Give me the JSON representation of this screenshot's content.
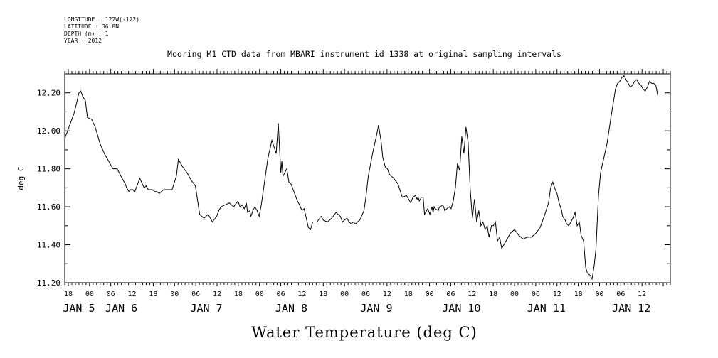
{
  "meta": {
    "longitude": "LONGITUDE : 122W(-122)",
    "latitude": "LATITUDE : 36.8N",
    "depth": "DEPTH (m) : 1",
    "year": "YEAR : 2012"
  },
  "chart_data": {
    "type": "line",
    "title": "Mooring M1 CTD data from MBARI instrument id 1338 at original sampling intervals",
    "xlabel": "Water Temperature (deg C)",
    "ylabel": "deg C",
    "ylim": [
      11.2,
      12.3
    ],
    "xlim_hours": [
      -7,
      164
    ],
    "grid": false,
    "y_ticks": [
      "11.20",
      "11.40",
      "11.60",
      "11.80",
      "12.00",
      "12.20"
    ],
    "x_ticks": [
      {
        "h": -6,
        "label": "18"
      },
      {
        "h": 0,
        "label": "00"
      },
      {
        "h": 6,
        "label": "06"
      },
      {
        "h": 12,
        "label": "12"
      },
      {
        "h": 18,
        "label": "18"
      },
      {
        "h": 24,
        "label": "00"
      },
      {
        "h": 30,
        "label": "06"
      },
      {
        "h": 36,
        "label": "12"
      },
      {
        "h": 42,
        "label": "18"
      },
      {
        "h": 48,
        "label": "00"
      },
      {
        "h": 54,
        "label": "06"
      },
      {
        "h": 60,
        "label": "12"
      },
      {
        "h": 66,
        "label": "18"
      },
      {
        "h": 72,
        "label": "00"
      },
      {
        "h": 78,
        "label": "06"
      },
      {
        "h": 84,
        "label": "12"
      },
      {
        "h": 90,
        "label": "18"
      },
      {
        "h": 96,
        "label": "00"
      },
      {
        "h": 102,
        "label": "06"
      },
      {
        "h": 108,
        "label": "12"
      },
      {
        "h": 114,
        "label": "18"
      },
      {
        "h": 120,
        "label": "00"
      },
      {
        "h": 126,
        "label": "06"
      },
      {
        "h": 132,
        "label": "12"
      },
      {
        "h": 138,
        "label": "18"
      },
      {
        "h": 144,
        "label": "00"
      },
      {
        "h": 150,
        "label": "06"
      },
      {
        "h": 156,
        "label": "12"
      }
    ],
    "day_labels": [
      {
        "h": -3,
        "label": "JAN  5"
      },
      {
        "h": 9,
        "label": "JAN  6"
      },
      {
        "h": 33,
        "label": "JAN  7"
      },
      {
        "h": 57,
        "label": "JAN  8"
      },
      {
        "h": 81,
        "label": "JAN  9"
      },
      {
        "h": 105,
        "label": "JAN 10"
      },
      {
        "h": 129,
        "label": "JAN 11"
      },
      {
        "h": 153,
        "label": "JAN 12"
      }
    ],
    "series": [
      {
        "x_hours": [
          -7.0,
          -6.0,
          -5.0,
          -4.4,
          -3.6,
          -3.0,
          -2.5,
          -1.9,
          -1.2,
          -0.6,
          0.6,
          1.6,
          3.0,
          4.2,
          5.4,
          6.6,
          7.8,
          8.9,
          10.1,
          10.5,
          11.1,
          11.6,
          12.2,
          12.8,
          14.2,
          15.4,
          16.0,
          16.6,
          17.8,
          18.4,
          19.0,
          19.7,
          20.9,
          22.1,
          23.3,
          23.8,
          24.5,
          25.1,
          25.7,
          26.3,
          27.5,
          28.7,
          29.9,
          31.1,
          32.3,
          33.5,
          34.7,
          35.9,
          36.5,
          37.1,
          38.3,
          39.5,
          40.7,
          41.9,
          42.5,
          43.1,
          43.7,
          44.3,
          44.6,
          45.3,
          45.5,
          45.8,
          46.1,
          46.7,
          47.3,
          47.9,
          48.5,
          49.1,
          50.3,
          51.5,
          52.7,
          53.3,
          54.0,
          54.3,
          54.6,
          55.7,
          56.3,
          56.9,
          57.5,
          58.1,
          58.7,
          59.3,
          60.0,
          60.6,
          61.8,
          62.4,
          63.0,
          64.2,
          65.4,
          66.0,
          67.2,
          68.4,
          69.6,
          70.8,
          71.4,
          72.0,
          72.7,
          73.3,
          73.9,
          74.5,
          75.1,
          76.3,
          77.5,
          78.1,
          78.7,
          79.9,
          81.1,
          81.6,
          82.3,
          82.8,
          83.5,
          84.1,
          84.7,
          85.9,
          87.1,
          88.3,
          89.5,
          90.1,
          90.7,
          91.3,
          92.0,
          92.5,
          92.8,
          93.1,
          93.7,
          94.2,
          94.6,
          94.9,
          95.5,
          96.1,
          96.7,
          97.0,
          97.3,
          97.6,
          98.5,
          98.8,
          99.1,
          99.7,
          100.0,
          100.3,
          100.9,
          101.5,
          102.1,
          102.7,
          103.3,
          103.9,
          104.5,
          105.1,
          105.7,
          106.3,
          106.9,
          107.5,
          108.1,
          108.7,
          109.3,
          109.9,
          110.5,
          111.1,
          111.7,
          112.3,
          112.8,
          113.5,
          114.0,
          114.6,
          115.2,
          115.8,
          116.4,
          117.0,
          117.6,
          118.2,
          118.8,
          120.0,
          121.2,
          122.4,
          123.6,
          124.8,
          126.0,
          127.2,
          128.4,
          129.6,
          130.2,
          130.8,
          131.5,
          132.0,
          132.6,
          133.3,
          133.6,
          134.3,
          134.7,
          135.3,
          135.9,
          136.5,
          137.1,
          137.7,
          138.3,
          138.8,
          139.5,
          140.1,
          140.6,
          141.3,
          141.9,
          142.5,
          143.0,
          143.7,
          144.3,
          144.9,
          146.1,
          147.3,
          148.5,
          149.1,
          149.7,
          150.3,
          150.9,
          151.5,
          152.7,
          153.3,
          153.9,
          154.5,
          155.1,
          155.7,
          156.3,
          156.9,
          157.5,
          158.1,
          158.7,
          159.3,
          159.9,
          160.5
        ],
        "y": [
          11.96,
          12.01,
          12.06,
          12.09,
          12.15,
          12.2,
          12.21,
          12.18,
          12.16,
          12.07,
          12.06,
          12.02,
          11.93,
          11.88,
          11.84,
          11.8,
          11.8,
          11.76,
          11.72,
          11.7,
          11.68,
          11.69,
          11.69,
          11.68,
          11.75,
          11.7,
          11.71,
          11.69,
          11.69,
          11.68,
          11.68,
          11.67,
          11.69,
          11.69,
          11.69,
          11.72,
          11.76,
          11.85,
          11.83,
          11.81,
          11.78,
          11.74,
          11.71,
          11.56,
          11.54,
          11.56,
          11.52,
          11.55,
          11.58,
          11.6,
          11.61,
          11.62,
          11.6,
          11.63,
          11.6,
          11.61,
          11.59,
          11.62,
          11.57,
          11.58,
          11.55,
          11.56,
          11.58,
          11.6,
          11.58,
          11.55,
          11.61,
          11.69,
          11.85,
          11.95,
          11.88,
          12.04,
          11.78,
          11.84,
          11.76,
          11.8,
          11.73,
          11.72,
          11.69,
          11.66,
          11.63,
          11.61,
          11.58,
          11.59,
          11.49,
          11.48,
          11.52,
          11.52,
          11.55,
          11.53,
          11.52,
          11.54,
          11.57,
          11.55,
          11.52,
          11.53,
          11.54,
          11.52,
          11.51,
          11.52,
          11.51,
          11.53,
          11.58,
          11.66,
          11.76,
          11.88,
          11.98,
          12.03,
          11.95,
          11.86,
          11.81,
          11.8,
          11.77,
          11.75,
          11.72,
          11.65,
          11.66,
          11.64,
          11.62,
          11.65,
          11.66,
          11.64,
          11.65,
          11.63,
          11.65,
          11.65,
          11.56,
          11.57,
          11.59,
          11.56,
          11.6,
          11.57,
          11.6,
          11.59,
          11.58,
          11.6,
          11.6,
          11.61,
          11.6,
          11.58,
          11.59,
          11.6,
          11.59,
          11.63,
          11.7,
          11.83,
          11.79,
          11.97,
          11.88,
          12.02,
          11.94,
          11.69,
          11.54,
          11.64,
          11.52,
          11.58,
          11.5,
          11.52,
          11.48,
          11.5,
          11.44,
          11.5,
          11.5,
          11.52,
          11.42,
          11.44,
          11.38,
          11.4,
          11.42,
          11.44,
          11.46,
          11.48,
          11.45,
          11.43,
          11.44,
          11.44,
          11.46,
          11.49,
          11.55,
          11.62,
          11.7,
          11.73,
          11.69,
          11.67,
          11.62,
          11.58,
          11.55,
          11.53,
          11.51,
          11.5,
          11.52,
          11.54,
          11.57,
          11.5,
          11.52,
          11.45,
          11.42,
          11.28,
          11.25,
          11.24,
          11.22,
          11.29,
          11.38,
          11.66,
          11.78,
          11.83,
          11.93,
          12.08,
          12.22,
          12.25,
          12.26,
          12.28,
          12.29,
          12.27,
          12.23,
          12.24,
          12.26,
          12.27,
          12.25,
          12.24,
          12.22,
          12.21,
          12.23,
          12.26,
          12.25,
          12.25,
          12.24,
          12.18
        ]
      }
    ]
  }
}
